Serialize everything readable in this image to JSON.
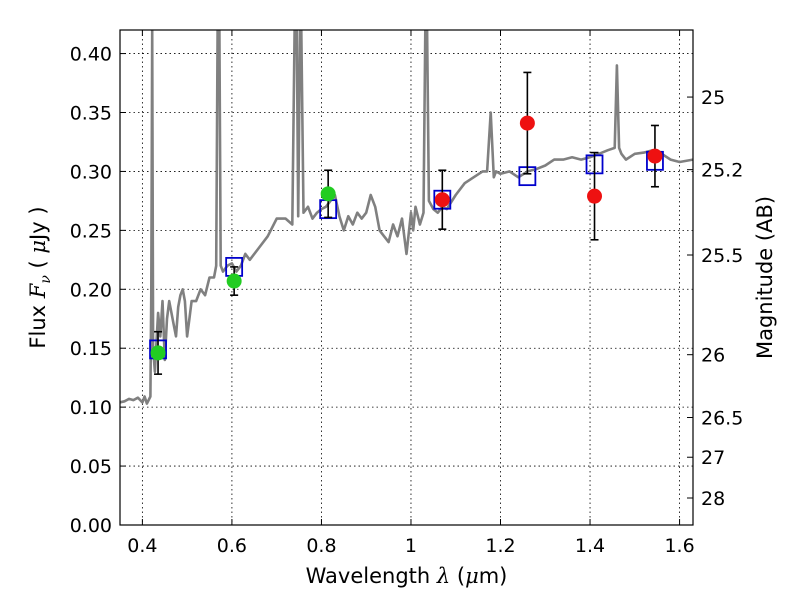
{
  "chart_data": {
    "type": "scatter",
    "xlabel": "Wavelength  λ (μm)",
    "ylabel": "Flux  Fν  ( μJy )",
    "ylabel_parts": {
      "prefix": "Flux  ",
      "var": "F",
      "sub": "ν",
      "mid": "  (  ",
      "mu": "μ",
      "unit": "Jy )"
    },
    "xlabel_parts": {
      "prefix": "Wavelength  ",
      "var": "λ",
      "mid": " (",
      "mu": "μ",
      "unit": "m)"
    },
    "y2label": "Magnitude (AB)",
    "xlim": [
      0.35,
      1.63
    ],
    "ylim": [
      0.0,
      0.42
    ],
    "grid": true,
    "x_ticks": [
      0.4,
      0.6,
      0.8,
      1.0,
      1.2,
      1.4,
      1.6
    ],
    "x_tick_labels": [
      "0.4",
      "0.6",
      "0.8",
      "1",
      "1.2",
      "1.4",
      "1.6"
    ],
    "y_ticks": [
      0.0,
      0.05,
      0.1,
      0.15,
      0.2,
      0.25,
      0.3,
      0.35,
      0.4
    ],
    "y_tick_labels": [
      "0.00",
      "0.05",
      "0.10",
      "0.15",
      "0.20",
      "0.25",
      "0.30",
      "0.35",
      "0.40"
    ],
    "y2_ticks": [
      {
        "flux": 0.3631,
        "label": "25"
      },
      {
        "flux": 0.3015,
        "label": "25.2"
      },
      {
        "flux": 0.2291,
        "label": "25.5"
      },
      {
        "flux": 0.1445,
        "label": "26"
      },
      {
        "flux": 0.0912,
        "label": "26.5"
      },
      {
        "flux": 0.0575,
        "label": "27"
      },
      {
        "flux": 0.0229,
        "label": "28"
      }
    ],
    "colors": {
      "model": "#808080",
      "model_photometry": "#0000cc",
      "detection_green": "#22cc22",
      "detection_red": "#ee1111",
      "errorbar": "#000000"
    },
    "series": [
      {
        "name": "model spectrum",
        "kind": "line",
        "x": [
          0.35,
          0.36,
          0.37,
          0.38,
          0.39,
          0.4,
          0.405,
          0.41,
          0.418,
          0.42,
          0.422,
          0.424,
          0.428,
          0.43,
          0.435,
          0.44,
          0.445,
          0.45,
          0.455,
          0.46,
          0.47,
          0.475,
          0.48,
          0.485,
          0.49,
          0.495,
          0.5,
          0.505,
          0.51,
          0.52,
          0.53,
          0.54,
          0.55,
          0.56,
          0.565,
          0.568,
          0.572,
          0.575,
          0.58,
          0.59,
          0.6,
          0.61,
          0.62,
          0.63,
          0.64,
          0.66,
          0.68,
          0.7,
          0.72,
          0.735,
          0.74,
          0.745,
          0.748,
          0.752,
          0.755,
          0.76,
          0.77,
          0.78,
          0.79,
          0.8,
          0.81,
          0.82,
          0.83,
          0.84,
          0.85,
          0.86,
          0.87,
          0.88,
          0.89,
          0.9,
          0.91,
          0.92,
          0.93,
          0.94,
          0.95,
          0.96,
          0.97,
          0.98,
          0.99,
          1.0,
          1.005,
          1.01,
          1.02,
          1.028,
          1.032,
          1.036,
          1.04,
          1.05,
          1.06,
          1.07,
          1.08,
          1.1,
          1.12,
          1.14,
          1.16,
          1.17,
          1.178,
          1.185,
          1.19,
          1.2,
          1.22,
          1.24,
          1.26,
          1.28,
          1.3,
          1.32,
          1.34,
          1.36,
          1.38,
          1.4,
          1.42,
          1.44,
          1.455,
          1.46,
          1.465,
          1.47,
          1.48,
          1.5,
          1.52,
          1.54,
          1.56,
          1.58,
          1.6,
          1.63
        ],
        "y": [
          0.104,
          0.105,
          0.107,
          0.106,
          0.108,
          0.104,
          0.109,
          0.103,
          0.109,
          0.2,
          0.42,
          0.15,
          0.13,
          0.145,
          0.18,
          0.16,
          0.19,
          0.14,
          0.175,
          0.19,
          0.17,
          0.16,
          0.185,
          0.195,
          0.2,
          0.19,
          0.16,
          0.175,
          0.19,
          0.19,
          0.2,
          0.195,
          0.21,
          0.21,
          0.22,
          0.42,
          0.42,
          0.22,
          0.215,
          0.22,
          0.222,
          0.215,
          0.22,
          0.23,
          0.225,
          0.235,
          0.245,
          0.26,
          0.26,
          0.255,
          0.42,
          0.42,
          0.262,
          0.42,
          0.42,
          0.265,
          0.27,
          0.26,
          0.265,
          0.268,
          0.27,
          0.275,
          0.28,
          0.262,
          0.25,
          0.262,
          0.255,
          0.265,
          0.26,
          0.265,
          0.28,
          0.27,
          0.25,
          0.245,
          0.24,
          0.255,
          0.245,
          0.26,
          0.23,
          0.265,
          0.25,
          0.27,
          0.255,
          0.265,
          0.42,
          0.42,
          0.275,
          0.268,
          0.265,
          0.27,
          0.268,
          0.28,
          0.29,
          0.295,
          0.3,
          0.3,
          0.35,
          0.295,
          0.3,
          0.298,
          0.3,
          0.295,
          0.3,
          0.302,
          0.305,
          0.31,
          0.31,
          0.312,
          0.31,
          0.312,
          0.315,
          0.318,
          0.32,
          0.39,
          0.32,
          0.315,
          0.31,
          0.315,
          0.316,
          0.318,
          0.315,
          0.31,
          0.308,
          0.31
        ]
      },
      {
        "name": "model photometry",
        "kind": "open-square",
        "x": [
          0.435,
          0.605,
          0.815,
          1.07,
          1.26,
          1.41,
          1.545
        ],
        "y": [
          0.149,
          0.219,
          0.268,
          0.276,
          0.296,
          0.306,
          0.309
        ]
      },
      {
        "name": "detections (green)",
        "kind": "filled-circle",
        "color_key": "detection_green",
        "x": [
          0.435,
          0.605,
          0.815
        ],
        "y": [
          0.146,
          0.207,
          0.281
        ],
        "yerr": [
          0.018,
          0.012,
          0.02
        ]
      },
      {
        "name": "detections (red)",
        "kind": "filled-circle",
        "color_key": "detection_red",
        "x": [
          1.07,
          1.26,
          1.41,
          1.545
        ],
        "y": [
          0.276,
          0.341,
          0.279,
          0.313
        ],
        "yerr": [
          0.025,
          0.043,
          0.037,
          0.026
        ]
      }
    ]
  }
}
